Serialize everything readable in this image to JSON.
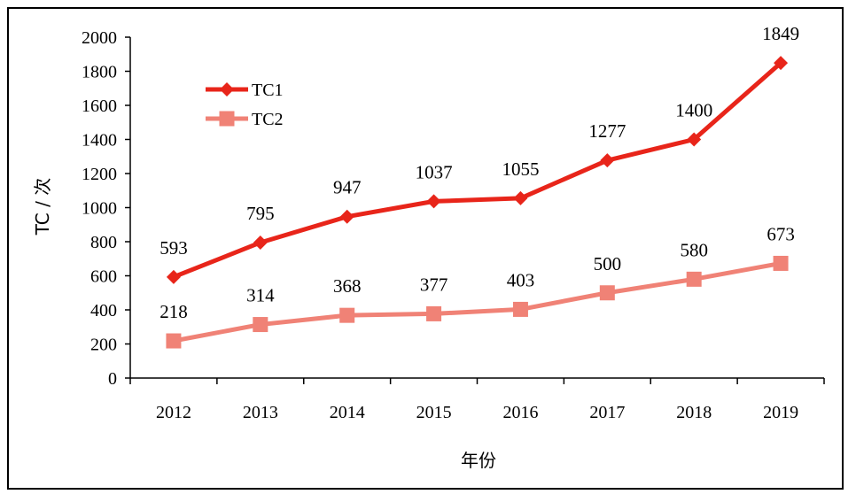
{
  "chart_data": {
    "type": "line",
    "title": "",
    "xlabel": "年份",
    "ylabel": "TC / 次",
    "categories": [
      "2012",
      "2013",
      "2014",
      "2015",
      "2016",
      "2017",
      "2018",
      "2019"
    ],
    "ylim": [
      0,
      2000
    ],
    "yticks": [
      0,
      200,
      400,
      600,
      800,
      1000,
      1200,
      1400,
      1600,
      1800,
      2000
    ],
    "grid": false,
    "legend_position": "top-left",
    "series": [
      {
        "name": "TC1",
        "marker": "diamond",
        "color": "#e8251a",
        "values": [
          593,
          795,
          947,
          1037,
          1055,
          1277,
          1400,
          1849
        ]
      },
      {
        "name": "TC2",
        "marker": "square",
        "color": "#f08276",
        "values": [
          218,
          314,
          368,
          377,
          403,
          500,
          580,
          673
        ]
      }
    ]
  }
}
